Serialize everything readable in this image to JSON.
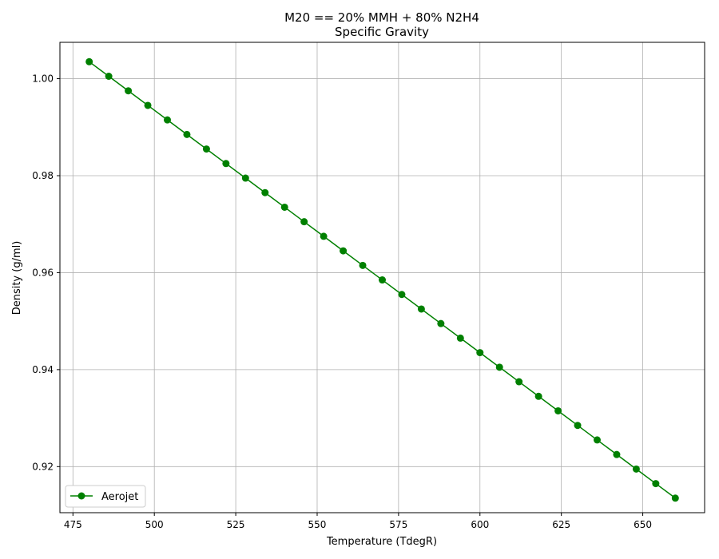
{
  "chart_data": {
    "type": "line",
    "title": "M20 == 20% MMH + 80% N2H4",
    "subtitle": "Specific Gravity",
    "xlabel": "Temperature (TdegR)",
    "ylabel": "Density (g/ml)",
    "xlim": [
      471,
      669
    ],
    "ylim": [
      0.9105,
      1.0075
    ],
    "xticks": [
      475,
      500,
      525,
      550,
      575,
      600,
      625,
      650
    ],
    "xtick_labels": [
      "475",
      "500",
      "525",
      "550",
      "575",
      "600",
      "625",
      "650"
    ],
    "yticks": [
      0.92,
      0.94,
      0.96,
      0.98,
      1.0
    ],
    "ytick_labels": [
      "0.92",
      "0.94",
      "0.96",
      "0.98",
      "1.00"
    ],
    "grid": true,
    "legend": {
      "position": "lower-left"
    },
    "series": [
      {
        "name": "Aerojet",
        "color": "#008000",
        "marker": "circle",
        "x": [
          480,
          486,
          492,
          498,
          504,
          510,
          516,
          522,
          528,
          534,
          540,
          546,
          552,
          558,
          564,
          570,
          576,
          582,
          588,
          594,
          600,
          606,
          612,
          618,
          624,
          630,
          636,
          642,
          648,
          654,
          660
        ],
        "y": [
          1.0035,
          1.0005,
          0.9975,
          0.9945,
          0.9915,
          0.9885,
          0.9855,
          0.9825,
          0.9795,
          0.9765,
          0.9735,
          0.9705,
          0.9675,
          0.9645,
          0.9615,
          0.9585,
          0.9555,
          0.9525,
          0.9495,
          0.9465,
          0.9435,
          0.9405,
          0.9375,
          0.9345,
          0.9315,
          0.9285,
          0.9255,
          0.9225,
          0.9195,
          0.9165,
          0.9135
        ]
      }
    ]
  }
}
